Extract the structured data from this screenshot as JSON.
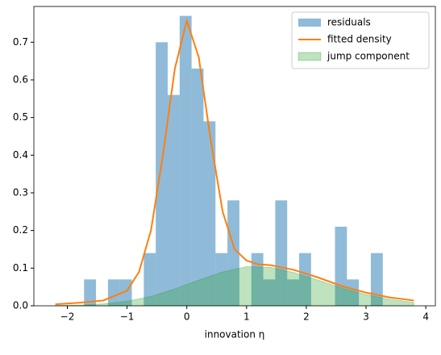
{
  "chart_data": {
    "type": "histogram",
    "xlabel": "innovation η",
    "bins": [
      -1.72,
      -1.52,
      -1.32,
      -1.12,
      -0.92,
      -0.72,
      -0.52,
      -0.32,
      -0.12,
      0.08,
      0.28,
      0.48,
      0.68,
      0.88,
      1.08,
      1.28,
      1.48,
      1.68,
      1.88,
      2.08,
      2.28,
      2.48,
      2.68,
      2.88,
      3.08,
      3.28
    ],
    "series": [
      {
        "name": "residuals",
        "type": "histogram",
        "color": "#1f77b4",
        "values": [
          0.07,
          0,
          0.07,
          0.07,
          0,
          0.14,
          0.7,
          0.56,
          0.77,
          0.63,
          0.49,
          0.14,
          0.28,
          0,
          0.14,
          0.07,
          0.28,
          0.07,
          0.14,
          0,
          0,
          0.21,
          0.07,
          0,
          0.14
        ]
      },
      {
        "name": "fitted density",
        "type": "line",
        "color": "#ff7f0e",
        "x": [
          -2.2,
          -1.8,
          -1.4,
          -1.0,
          -0.8,
          -0.6,
          -0.4,
          -0.2,
          0,
          0.2,
          0.4,
          0.6,
          0.8,
          1.0,
          1.2,
          1.4,
          1.8,
          2.2,
          2.6,
          3.0,
          3.4,
          3.8
        ],
        "values": [
          0.004,
          0.008,
          0.014,
          0.04,
          0.09,
          0.2,
          0.4,
          0.63,
          0.757,
          0.66,
          0.44,
          0.25,
          0.15,
          0.12,
          0.11,
          0.108,
          0.095,
          0.075,
          0.052,
          0.035,
          0.022,
          0.014
        ]
      },
      {
        "name": "jump component",
        "type": "area",
        "color": "#2ca02c",
        "x": [
          -2.2,
          -1.8,
          -1.4,
          -1.0,
          -0.6,
          -0.2,
          0.2,
          0.6,
          1.0,
          1.4,
          1.8,
          2.2,
          2.6,
          3.0,
          3.4,
          3.8
        ],
        "values": [
          0.001,
          0.002,
          0.005,
          0.012,
          0.025,
          0.045,
          0.068,
          0.09,
          0.104,
          0.102,
          0.088,
          0.068,
          0.047,
          0.03,
          0.017,
          0.009
        ]
      }
    ],
    "xlim": [
      -2.56,
      4.16
    ],
    "xticks": [
      {
        "value": -2,
        "label": "−2"
      },
      {
        "value": -1,
        "label": "−1"
      },
      0,
      1,
      2,
      3,
      4
    ],
    "ylim": [
      0,
      0.795
    ],
    "yticks": [
      {
        "value": 0,
        "label": "0.0"
      },
      0.1,
      0.2,
      0.3,
      0.4,
      0.5,
      0.6,
      0.7
    ],
    "legend": "upper right"
  }
}
